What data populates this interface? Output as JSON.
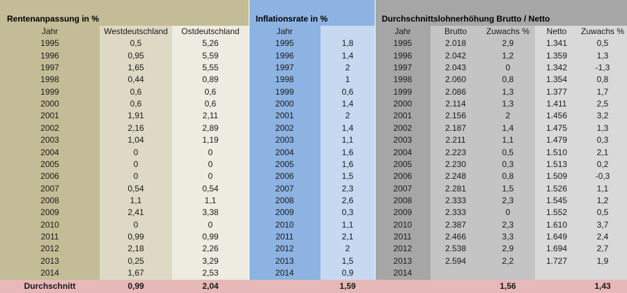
{
  "groups": [
    "Rentenanpassung in %",
    "Inflationsrate in %",
    "Durchschnittslohnerhöhung Brutto / Netto"
  ],
  "columns": {
    "jahr": "Jahr",
    "west": "Westdeutschland",
    "ost": "Ostdeutschland",
    "brutto": "Brutto",
    "zuwachs": "Zuwachs %",
    "netto": "Netto"
  },
  "rows": [
    {
      "year": "1995",
      "west": "0,5",
      "ost": "5,26",
      "inflation": "1,8",
      "brutto": "2.018",
      "zuwachs_brutto": "2,9",
      "netto": "1.341",
      "zuwachs_netto": "0,5"
    },
    {
      "year": "1996",
      "west": "0,95",
      "ost": "5,59",
      "inflation": "1,4",
      "brutto": "2.042",
      "zuwachs_brutto": "1,2",
      "netto": "1.359",
      "zuwachs_netto": "1,3"
    },
    {
      "year": "1997",
      "west": "1,65",
      "ost": "5,55",
      "inflation": "2",
      "brutto": "2.043",
      "zuwachs_brutto": "0",
      "netto": "1.342",
      "zuwachs_netto": "-1,3"
    },
    {
      "year": "1998",
      "west": "0,44",
      "ost": "0,89",
      "inflation": "1",
      "brutto": "2.060",
      "zuwachs_brutto": "0,8",
      "netto": "1.354",
      "zuwachs_netto": "0,8"
    },
    {
      "year": "1999",
      "west": "0,6",
      "ost": "0,6",
      "inflation": "0,6",
      "brutto": "2.086",
      "zuwachs_brutto": "1,3",
      "netto": "1.377",
      "zuwachs_netto": "1,7"
    },
    {
      "year": "2000",
      "west": "0,6",
      "ost": "0,6",
      "inflation": "1,4",
      "brutto": "2.114",
      "zuwachs_brutto": "1,3",
      "netto": "1.411",
      "zuwachs_netto": "2,5"
    },
    {
      "year": "2001",
      "west": "1,91",
      "ost": "2,11",
      "inflation": "2",
      "brutto": "2.156",
      "zuwachs_brutto": "2",
      "netto": "1.456",
      "zuwachs_netto": "3,2"
    },
    {
      "year": "2002",
      "west": "2,16",
      "ost": "2,89",
      "inflation": "1,4",
      "brutto": "2.187",
      "zuwachs_brutto": "1,4",
      "netto": "1.475",
      "zuwachs_netto": "1,3"
    },
    {
      "year": "2003",
      "west": "1,04",
      "ost": "1,19",
      "inflation": "1,1",
      "brutto": "2.211",
      "zuwachs_brutto": "1,1",
      "netto": "1.479",
      "zuwachs_netto": "0,3"
    },
    {
      "year": "2004",
      "west": "0",
      "ost": "0",
      "inflation": "1,6",
      "brutto": "2.223",
      "zuwachs_brutto": "0,5",
      "netto": "1.510",
      "zuwachs_netto": "2,1"
    },
    {
      "year": "2005",
      "west": "0",
      "ost": "0",
      "inflation": "1,6",
      "brutto": "2.230",
      "zuwachs_brutto": "0,3",
      "netto": "1.513",
      "zuwachs_netto": "0,2"
    },
    {
      "year": "2006",
      "west": "0",
      "ost": "0",
      "inflation": "1,5",
      "brutto": "2.248",
      "zuwachs_brutto": "0,8",
      "netto": "1.509",
      "zuwachs_netto": "-0,3"
    },
    {
      "year": "2007",
      "west": "0,54",
      "ost": "0,54",
      "inflation": "2,3",
      "brutto": "2.281",
      "zuwachs_brutto": "1,5",
      "netto": "1.526",
      "zuwachs_netto": "1,1"
    },
    {
      "year": "2008",
      "west": "1,1",
      "ost": "1,1",
      "inflation": "2,6",
      "brutto": "2.333",
      "zuwachs_brutto": "2,3",
      "netto": "1.545",
      "zuwachs_netto": "1,2"
    },
    {
      "year": "2009",
      "west": "2,41",
      "ost": "3,38",
      "inflation": "0,3",
      "brutto": "2.333",
      "zuwachs_brutto": "0",
      "netto": "1.552",
      "zuwachs_netto": "0,5"
    },
    {
      "year": "2010",
      "west": "0",
      "ost": "0",
      "inflation": "1,1",
      "brutto": "2.387",
      "zuwachs_brutto": "2,3",
      "netto": "1.610",
      "zuwachs_netto": "3,7"
    },
    {
      "year": "2011",
      "west": "0,99",
      "ost": "0,99",
      "inflation": "2,1",
      "brutto": "2.466",
      "zuwachs_brutto": "3,3",
      "netto": "1.649",
      "zuwachs_netto": "2,4"
    },
    {
      "year": "2012",
      "west": "2,18",
      "ost": "2,26",
      "inflation": "2",
      "brutto": "2.538",
      "zuwachs_brutto": "2,9",
      "netto": "1.694",
      "zuwachs_netto": "2,7"
    },
    {
      "year": "2013",
      "west": "0,25",
      "ost": "3,29",
      "inflation": "1,5",
      "brutto": "2.594",
      "zuwachs_brutto": "2,2",
      "netto": "1.727",
      "zuwachs_netto": "1,9"
    },
    {
      "year": "2014",
      "west": "1,67",
      "ost": "2,53",
      "inflation": "0,9"
    }
  ],
  "footer": {
    "label": "Durchschnitt",
    "west": "0,99",
    "ost": "2,04",
    "inflation": "1,59",
    "zuwachs_brutto": "1,56",
    "zuwachs_netto": "1,43"
  }
}
